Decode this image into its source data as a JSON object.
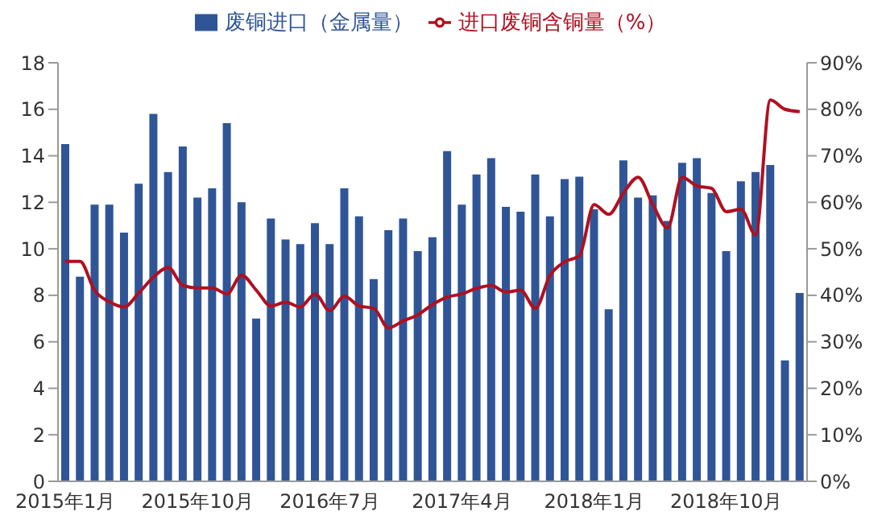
{
  "chart_data": {
    "type": "bar",
    "categories": [
      "2015年1月",
      null,
      null,
      null,
      null,
      null,
      null,
      null,
      null,
      "2015年10月",
      null,
      null,
      null,
      null,
      null,
      null,
      null,
      null,
      "2016年7月",
      null,
      null,
      null,
      null,
      null,
      null,
      null,
      null,
      "2017年4月",
      null,
      null,
      null,
      null,
      null,
      null,
      null,
      null,
      "2018年1月",
      null,
      null,
      null,
      null,
      null,
      null,
      null,
      null,
      "2018年10月",
      null,
      null,
      null,
      null,
      null
    ],
    "series": [
      {
        "name": "废铜进口（金属量）",
        "color": "#2f5597",
        "values": [
          14.5,
          8.8,
          11.9,
          11.9,
          10.7,
          12.8,
          15.8,
          13.3,
          14.4,
          12.2,
          12.6,
          15.4,
          12.0,
          7.0,
          11.3,
          10.4,
          10.2,
          11.1,
          10.2,
          12.6,
          11.4,
          8.7,
          10.8,
          11.3,
          9.9,
          10.5,
          14.2,
          11.9,
          13.2,
          13.9,
          11.8,
          11.6,
          13.2,
          11.4,
          13.0,
          13.1,
          11.7,
          7.4,
          13.8,
          12.2,
          12.3,
          11.2,
          13.7,
          13.9,
          12.4,
          9.9,
          12.9,
          13.3,
          13.6,
          5.2,
          8.1
        ]
      },
      {
        "name": "进口废铜含铜量（%）",
        "type": "line",
        "axis": "y2",
        "color": "#b01020",
        "values": [
          47.3,
          47.3,
          41,
          38.6,
          37.5,
          40.5,
          43.9,
          46,
          42.1,
          41.6,
          41.6,
          40.3,
          44.3,
          41.1,
          37.7,
          38.5,
          37.5,
          40.3,
          36.7,
          39.8,
          37.7,
          37.2,
          33,
          34.5,
          35.8,
          38,
          39.6,
          40.3,
          41.5,
          42.1,
          40.7,
          41.1,
          37.2,
          44.3,
          47.2,
          48.5,
          59.5,
          57.4,
          62,
          65.4,
          59.5,
          54.5,
          65.4,
          63.5,
          63,
          58,
          58.5,
          53,
          82,
          80,
          79.5
        ]
      }
    ],
    "ylim": [
      0,
      18
    ],
    "yticks": [
      0,
      2,
      4,
      6,
      8,
      10,
      12,
      14,
      16,
      18
    ],
    "y2lim": [
      0,
      90
    ],
    "y2ticks": [
      {
        "value": 0,
        "label": "0%"
      },
      {
        "value": 10,
        "label": "10%"
      },
      {
        "value": 20,
        "label": "20%"
      },
      {
        "value": 30,
        "label": "30%"
      },
      {
        "value": 40,
        "label": "40%"
      },
      {
        "value": 50,
        "label": "50%"
      },
      {
        "value": 60,
        "label": "60%"
      },
      {
        "value": 70,
        "label": "70%"
      },
      {
        "value": 80,
        "label": "80%"
      },
      {
        "value": 90,
        "label": "90%"
      }
    ],
    "grid": false,
    "legend": "top"
  }
}
